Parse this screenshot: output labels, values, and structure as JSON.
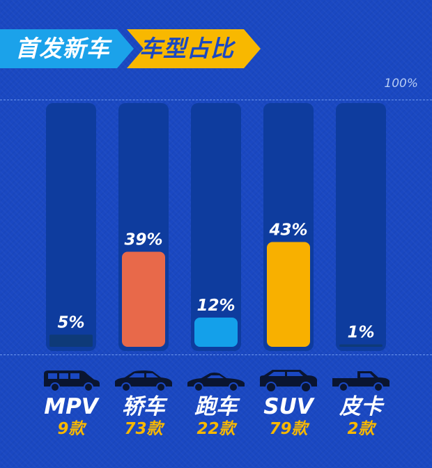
{
  "header": {
    "left_title": "首发新车",
    "right_title": "车型占比"
  },
  "chart_data": {
    "type": "bar",
    "categories": [
      "MPV",
      "轿车",
      "跑车",
      "SUV",
      "皮卡"
    ],
    "values": [
      5,
      39,
      12,
      43,
      1
    ],
    "value_labels": [
      "5%",
      "39%",
      "12%",
      "43%",
      "1%"
    ],
    "counts": [
      "9款",
      "73款",
      "22款",
      "79款",
      "2款"
    ],
    "ylim": [
      0,
      100
    ],
    "max_label": "100%",
    "colors": [
      "#0e3a78",
      "#e8694a",
      "#14a0ea",
      "#f8b000",
      "#0e3a78"
    ]
  },
  "icons": [
    "mpv-icon",
    "sedan-icon",
    "sports-car-icon",
    "suv-icon",
    "pickup-icon"
  ],
  "theme": {
    "background": "#1a48c2",
    "accent_blue": "#1ba2ea",
    "accent_yellow": "#f8b800"
  }
}
